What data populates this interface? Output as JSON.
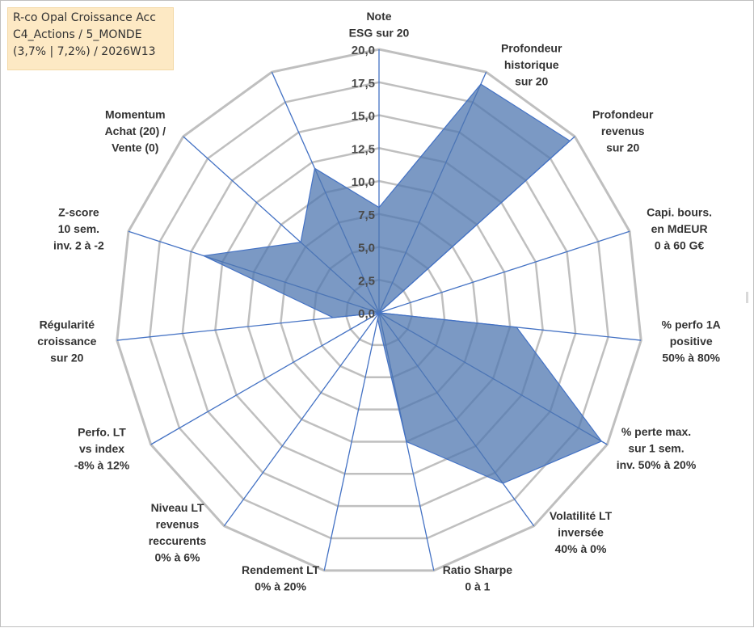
{
  "info_box": {
    "line1": "R-co Opal Croissance Acc",
    "line2": "C4_Actions / 5_MONDE",
    "line3": "(3,7% | 7,2%) / 2026W13"
  },
  "chart_data": {
    "type": "radar",
    "title": "",
    "rmin": 0,
    "rmax": 20,
    "tick_step": 2.5,
    "tick_labels": [
      "0,0",
      "2,5",
      "5,0",
      "7,5",
      "10,0",
      "12,5",
      "15,0",
      "17,5",
      "20,0"
    ],
    "axes": [
      {
        "label": [
          "Note",
          "ESG sur 20"
        ],
        "value": 8.0
      },
      {
        "label": [
          "Profondeur",
          "historique",
          "sur 20"
        ],
        "value": 19.0
      },
      {
        "label": [
          "Profondeur",
          "revenus",
          "sur 20"
        ],
        "value": 19.5
      },
      {
        "label": [
          "Capi. bours.",
          "en MdEUR",
          "0 à 60 G€"
        ],
        "value": 0.0
      },
      {
        "label": [
          "% perfo 1A",
          "positive",
          "50% à 80%"
        ],
        "value": 10.5
      },
      {
        "label": [
          "% perte max.",
          "sur 1 sem.",
          "inv. 50% à 20%"
        ],
        "value": 19.5
      },
      {
        "label": [
          "Volatilité LT",
          "inversée",
          "40% à 0%"
        ],
        "value": 16.0
      },
      {
        "label": [
          "Ratio Sharpe",
          "0 à 1"
        ],
        "value": 10.0
      },
      {
        "label": [
          "Rendement LT",
          "0% à 20%"
        ],
        "value": 0.5
      },
      {
        "label": [
          "Niveau LT",
          "revenus",
          "reccurents",
          "0% à 6%"
        ],
        "value": 0.0
      },
      {
        "label": [
          "Perfo. LT",
          "vs index",
          "-8% à 12%"
        ],
        "value": 0.0
      },
      {
        "label": [
          "Régularité",
          "croissance",
          "sur 20"
        ],
        "value": 3.5
      },
      {
        "label": [
          "Z-score",
          "10 sem.",
          "inv. 2 à -2"
        ],
        "value": 14.0
      },
      {
        "label": [
          "Momentum",
          "Achat (20) /",
          "Vente (0)"
        ],
        "value": 8.0
      },
      {
        "label": [],
        "value": 12.0
      }
    ],
    "series": [
      {
        "name": "R-co Opal Croissance Acc",
        "color": "#4f77b0",
        "fill_opacity": 0.75
      }
    ],
    "colors": {
      "grid": "#bfbfbf",
      "spoke": "#4472c4",
      "series": "#4f77b0"
    }
  }
}
